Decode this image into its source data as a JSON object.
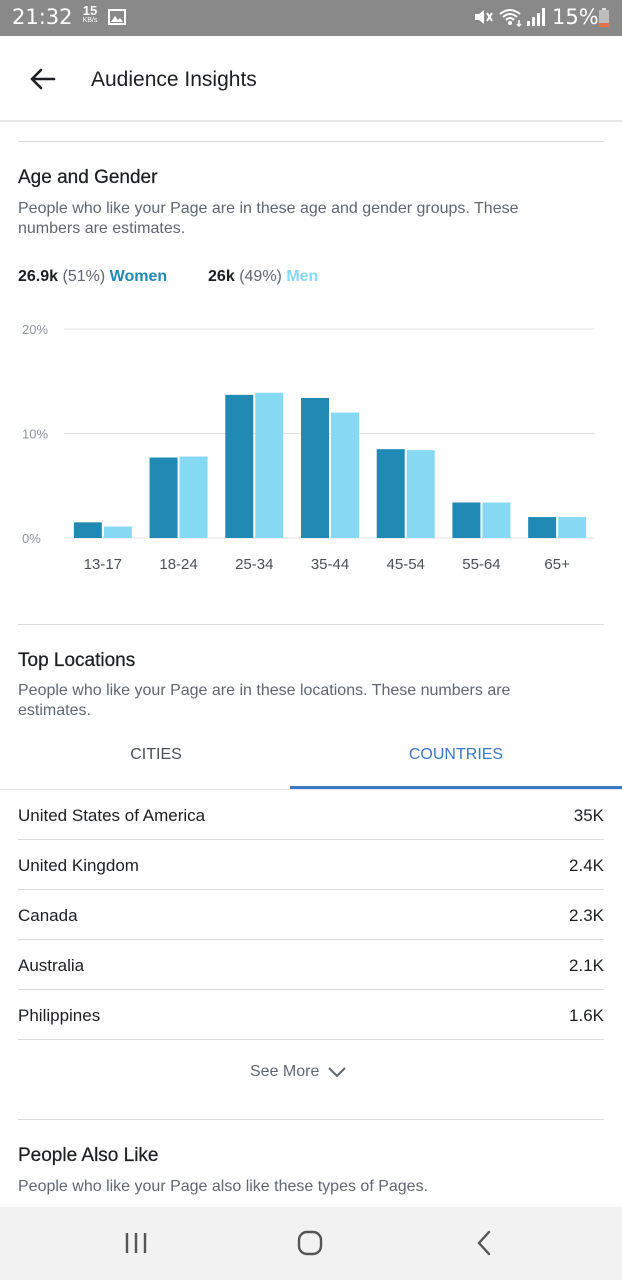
{
  "status_bar": {
    "time": "21:32",
    "net_speed_value": "15",
    "net_speed_unit": "KB/s",
    "battery_text": "15%",
    "icons": [
      "image-icon",
      "mute-icon",
      "wifi-icon",
      "signal-icon",
      "battery-icon"
    ]
  },
  "header": {
    "title": "Audience Insights",
    "back_icon": "arrow-left-icon"
  },
  "age_gender": {
    "title": "Age and Gender",
    "description": "People who like your Page are in these age and gender groups. These numbers are estimates.",
    "women": {
      "count": "26.9k",
      "pct": "(51%)",
      "label": "Women",
      "color": "#2089b4"
    },
    "men": {
      "count": "26k",
      "pct": "(49%)",
      "label": "Men",
      "color": "#86d9f2"
    }
  },
  "chart_data": {
    "type": "bar",
    "categories": [
      "13-17",
      "18-24",
      "25-34",
      "35-44",
      "45-54",
      "55-64",
      "65+"
    ],
    "series": [
      {
        "name": "Women",
        "color": "#2089b4",
        "values": [
          1.5,
          7.7,
          13.7,
          13.4,
          8.5,
          3.4,
          2.0
        ]
      },
      {
        "name": "Men",
        "color": "#86d9f2",
        "values": [
          1.1,
          7.8,
          13.9,
          12.0,
          8.4,
          3.4,
          2.0
        ]
      }
    ],
    "y_ticks": [
      "0%",
      "10%",
      "20%"
    ],
    "ylim": [
      0,
      20
    ],
    "grid": true
  },
  "top_locations": {
    "title": "Top Locations",
    "description": "People who like your Page are in these locations. These numbers are estimates.",
    "tabs": [
      {
        "label": "CITIES",
        "active": false
      },
      {
        "label": "COUNTRIES",
        "active": true
      }
    ],
    "rows": [
      {
        "name": "United States of America",
        "value": "35K"
      },
      {
        "name": "United Kingdom",
        "value": "2.4K"
      },
      {
        "name": "Canada",
        "value": "2.3K"
      },
      {
        "name": "Australia",
        "value": "2.1K"
      },
      {
        "name": "Philippines",
        "value": "1.6K"
      }
    ],
    "see_more_label": "See More",
    "see_more_icon": "chevron-down-icon",
    "accent_color": "#3b78c3"
  },
  "people_also_like": {
    "title": "People Also Like",
    "description": "People who like your Page also like these types of Pages."
  },
  "nav_bar": {
    "icons": [
      "recent-apps-icon",
      "home-icon",
      "back-icon"
    ]
  }
}
